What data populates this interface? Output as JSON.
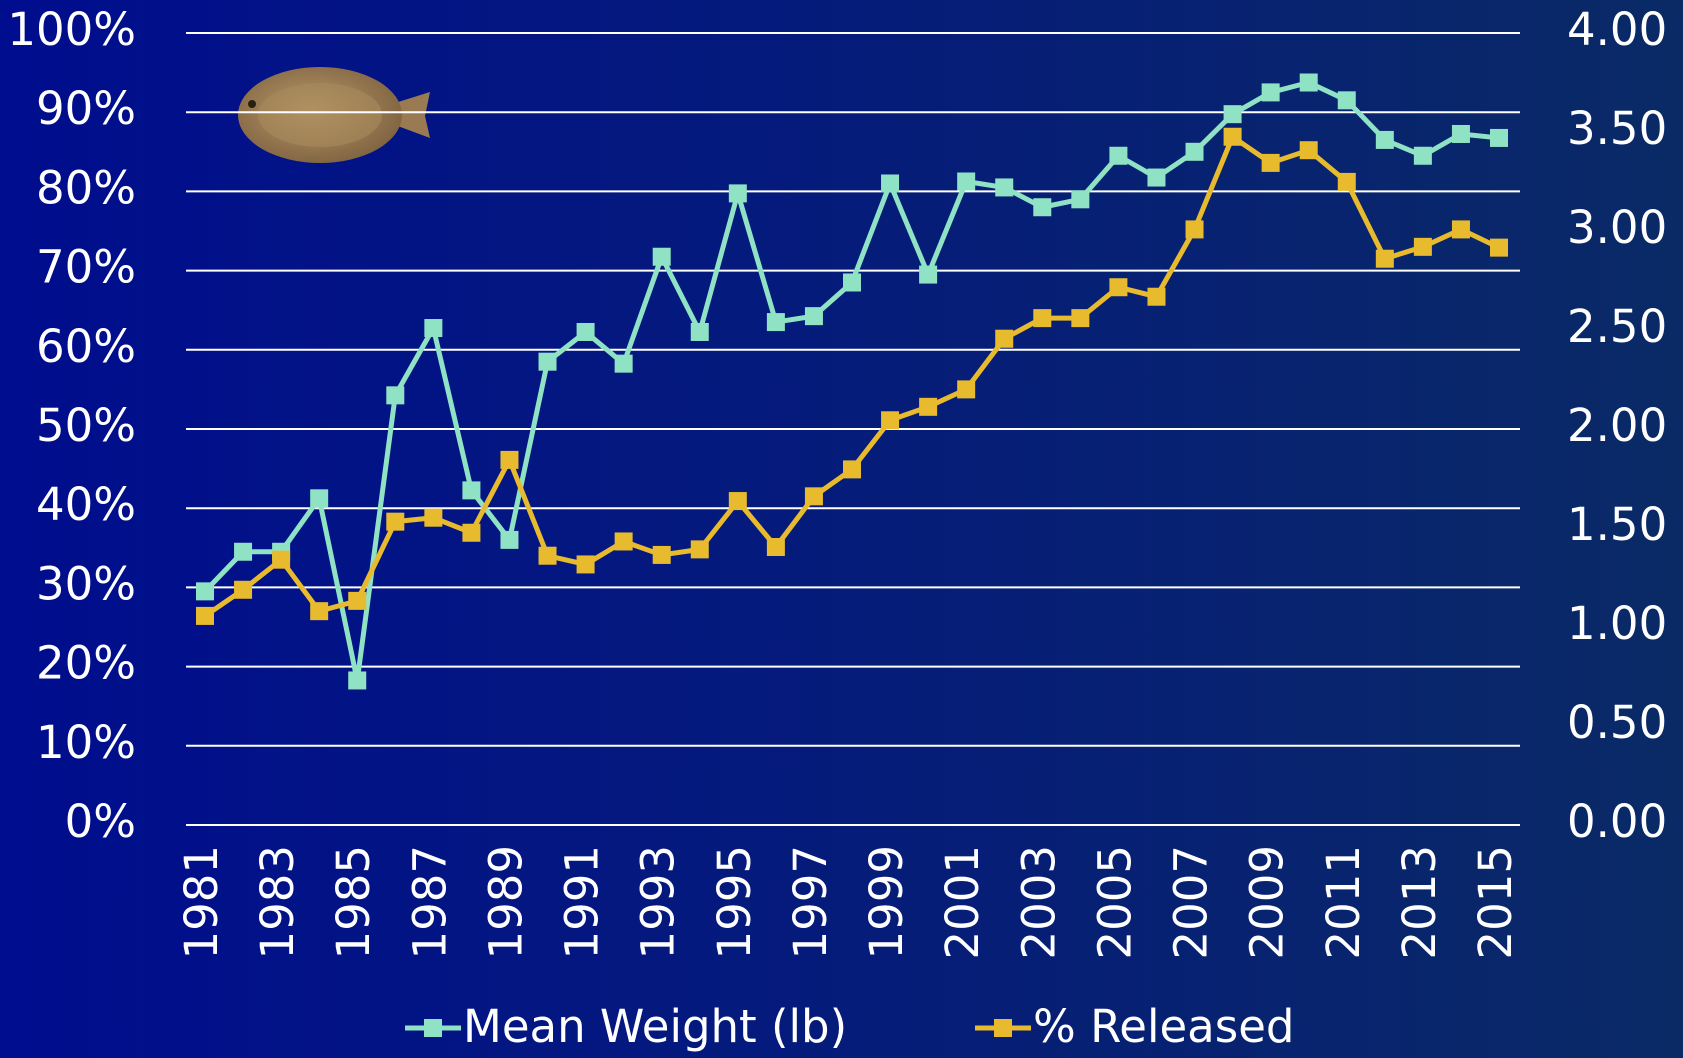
{
  "chart_data": {
    "type": "line",
    "categories": [
      1981,
      null,
      1983,
      null,
      1985,
      null,
      1987,
      null,
      1989,
      null,
      1991,
      null,
      1993,
      null,
      1995,
      null,
      1997,
      null,
      1999,
      null,
      2001,
      null,
      2003,
      null,
      2005,
      null,
      2007,
      null,
      2009,
      null,
      2011,
      null,
      2013,
      null,
      2015
    ],
    "series": [
      {
        "name": "Mean Weight (lb)",
        "color": "#8fe3c4",
        "axis": "y2",
        "values": [
          1.18,
          1.38,
          1.38,
          1.65,
          0.73,
          2.17,
          2.51,
          1.69,
          1.44,
          2.34,
          2.49,
          2.33,
          2.87,
          2.49,
          3.19,
          2.54,
          2.57,
          2.74,
          3.24,
          2.78,
          3.25,
          3.22,
          3.12,
          3.16,
          3.38,
          3.27,
          3.4,
          3.59,
          3.7,
          3.75,
          3.66,
          3.46,
          3.38,
          3.49,
          3.47
        ]
      },
      {
        "name": "% Released",
        "color": "#e8bb2e",
        "values": [
          26.4,
          29.7,
          33.5,
          27.0,
          28.3,
          38.3,
          38.8,
          36.9,
          46.1,
          34.0,
          32.9,
          35.8,
          34.1,
          34.8,
          40.9,
          35.1,
          41.5,
          44.9,
          51.1,
          52.8,
          55.0,
          61.4,
          64.0,
          64.0,
          67.9,
          66.7,
          75.2,
          86.9,
          83.6,
          85.2,
          81.2,
          71.5,
          73.0,
          75.2,
          72.9
        ]
      }
    ],
    "ylim": [
      0,
      100
    ],
    "yticks": [
      {
        "value": 0,
        "label": "0%"
      },
      {
        "value": 10,
        "label": "10%"
      },
      {
        "value": 20,
        "label": "20%"
      },
      {
        "value": 30,
        "label": "30%"
      },
      {
        "value": 40,
        "label": "40%"
      },
      {
        "value": 50,
        "label": "50%"
      },
      {
        "value": 60,
        "label": "60%"
      },
      {
        "value": 70,
        "label": "70%"
      },
      {
        "value": 80,
        "label": "80%"
      },
      {
        "value": 90,
        "label": "90%"
      },
      {
        "value": 100,
        "label": "100%"
      }
    ],
    "y2lim": [
      0,
      4
    ],
    "y2ticks": [
      {
        "value": 0,
        "label": "0.00"
      },
      {
        "value": 0.5,
        "label": "0.50"
      },
      {
        "value": 1,
        "label": "1.00"
      },
      {
        "value": 1.5,
        "label": "1.50"
      },
      {
        "value": 2,
        "label": "2.00"
      },
      {
        "value": 2.5,
        "label": "2.50"
      },
      {
        "value": 3,
        "label": "3.00"
      },
      {
        "value": 3.5,
        "label": "3.50"
      },
      {
        "value": 4,
        "label": "4.00"
      }
    ],
    "grid": true,
    "legend": "bottom"
  }
}
